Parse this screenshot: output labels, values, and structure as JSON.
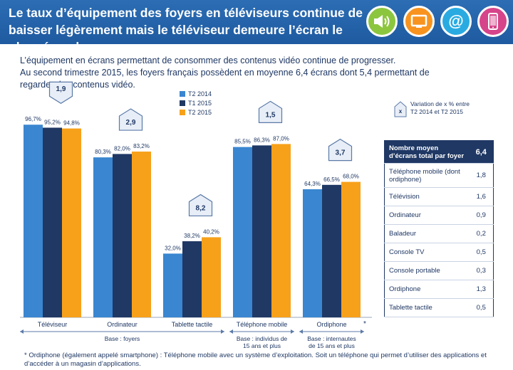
{
  "header": {
    "title": "Le taux d’équipement des foyers en téléviseurs continue de baisser légèrement mais le téléviseur demeure l’écran le plus répandu",
    "icons": [
      "speaker-icon",
      "tv-icon",
      "at-icon",
      "smartphone-icon"
    ],
    "icon_colors": [
      "#8cc63f",
      "#f7931e",
      "#29abe2",
      "#d6448a"
    ]
  },
  "intro": {
    "line1": "L’équipement en écrans permettant de consommer des contenus vidéo continue de progresser.",
    "line2": "Au second trimestre 2015, les foyers français possèdent en moyenne 6,4 écrans dont 5,4 permettant de regarder des contenus vidéo."
  },
  "legend_note": {
    "badge": "x",
    "text_line1": "Variation de x % entre",
    "text_line2": "T2 2014 et T2 2015"
  },
  "chart_data": {
    "type": "bar",
    "categories": [
      "Téléviseur",
      "Ordinateur",
      "Tablette tactile",
      "Téléphone mobile",
      "Ordiphone"
    ],
    "category_suffix": [
      "",
      "",
      "",
      "",
      "*"
    ],
    "series": [
      {
        "name": "T2 2014",
        "color": "#3a86d0",
        "values": [
          96.7,
          80.3,
          32.0,
          85.5,
          64.3
        ],
        "labels": [
          "96,7%",
          "80,3%",
          "32,0%",
          "85,5%",
          "64,3%"
        ]
      },
      {
        "name": "T1 2015",
        "color": "#1f3864",
        "values": [
          95.2,
          82.0,
          38.2,
          86.3,
          66.5
        ],
        "labels": [
          "95,2%",
          "82,0%",
          "38,2%",
          "86,3%",
          "66,5%"
        ]
      },
      {
        "name": "T2 2015",
        "color": "#f7a11a",
        "values": [
          94.8,
          83.2,
          40.2,
          87.0,
          68.0
        ],
        "labels": [
          "94,8%",
          "83,2%",
          "40,2%",
          "87,0%",
          "68,0%"
        ]
      }
    ],
    "variations": [
      {
        "label": "1,9",
        "direction": "down"
      },
      {
        "label": "2,9",
        "direction": "up"
      },
      {
        "label": "8,2",
        "direction": "up"
      },
      {
        "label": "1,5",
        "direction": "up"
      },
      {
        "label": "3,7",
        "direction": "up"
      }
    ],
    "ylim": [
      0,
      100
    ],
    "grid": false,
    "legend_placement": "top-center",
    "bases": [
      {
        "label": "Base : foyers",
        "spans": [
          0,
          2
        ]
      },
      {
        "label": "Base : individus de 15 ans et plus",
        "lines": [
          "Base : individus de",
          "15 ans et plus"
        ],
        "spans": [
          3,
          3
        ]
      },
      {
        "label": "Base : internautes de 15 ans et plus",
        "lines": [
          "Base : internautes",
          "de 15 ans et plus"
        ],
        "spans": [
          4,
          4
        ]
      }
    ]
  },
  "side_table": {
    "header": {
      "label": "Nombre moyen d’écrans total par foyer",
      "value": "6,4"
    },
    "rows": [
      {
        "label": "Téléphone mobile (dont ordiphone)",
        "value": "1,8"
      },
      {
        "label": "Télévision",
        "value": "1,6"
      },
      {
        "label": "Ordinateur",
        "value": "0,9"
      },
      {
        "label": "Baladeur",
        "value": "0,2"
      },
      {
        "label": "Console TV",
        "value": "0,5"
      },
      {
        "label": "Console portable",
        "value": "0,3"
      },
      {
        "label": "Ordiphone",
        "value": "1,3"
      },
      {
        "label": "Tablette tactile",
        "value": "0,5"
      }
    ]
  },
  "footnote": "* Ordiphone (également appelé smartphone) : Téléphone mobile avec un système d’exploitation. Soit un téléphone qui permet d’utiliser des applications et d’accéder à un magasin d’applications."
}
